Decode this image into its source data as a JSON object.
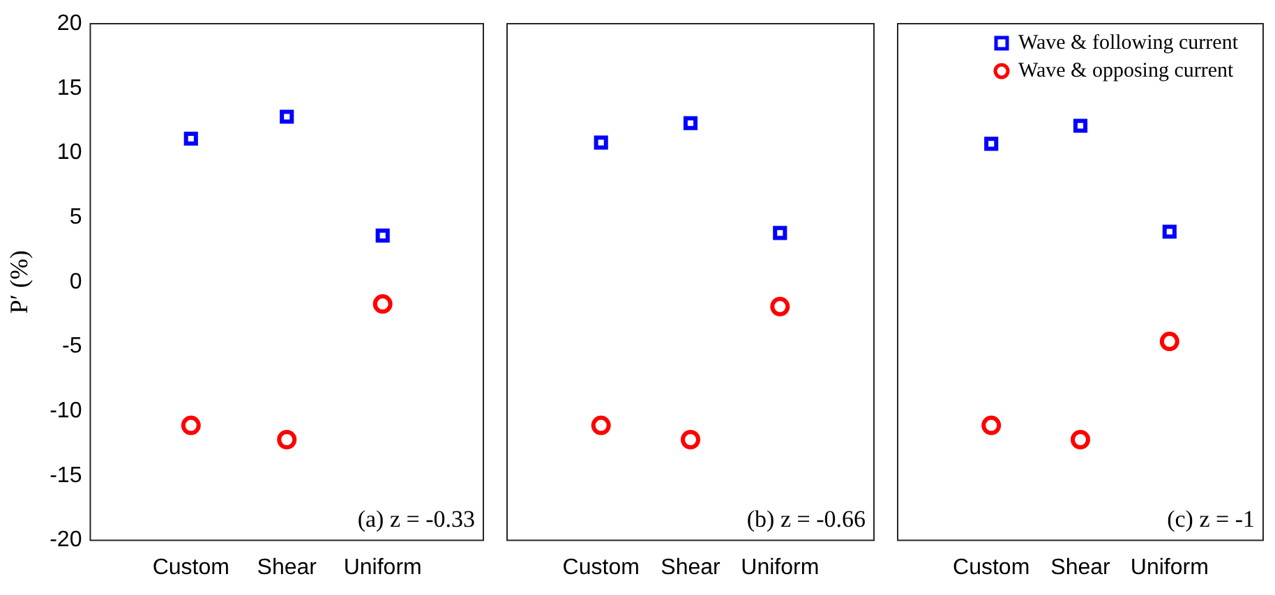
{
  "chart_data": [
    {
      "type": "scatter",
      "categories": [
        "Custom",
        "Shear",
        "Uniform"
      ],
      "ylabel": "P′ (%)",
      "ylim": [
        -20,
        20
      ],
      "yticks": [
        -20,
        -15,
        -10,
        -5,
        0,
        5,
        10,
        15,
        20
      ],
      "grid": false,
      "legend": false,
      "annotations": [
        "(a) z = -0.33"
      ],
      "series": [
        {
          "color": "#0000ff",
          "marker": "square",
          "values": [
            11.1,
            12.8,
            3.6
          ]
        },
        {
          "color": "#ff0000",
          "marker": "circle",
          "values": [
            -11.1,
            -12.2,
            -1.7
          ]
        }
      ]
    },
    {
      "type": "scatter",
      "categories": [
        "Custom",
        "Shear",
        "Uniform"
      ],
      "ylim": [
        -20,
        20
      ],
      "yticks": [
        -20,
        -15,
        -10,
        -5,
        0,
        5,
        10,
        15,
        20
      ],
      "tick_labels": "x",
      "grid": false,
      "legend": false,
      "annotations": [
        "(b) z = -0.66"
      ],
      "series": [
        {
          "color": "#0000ff",
          "marker": "square",
          "values": [
            10.8,
            12.3,
            3.8
          ]
        },
        {
          "color": "#ff0000",
          "marker": "circle",
          "values": [
            -11.1,
            -12.2,
            -1.9
          ]
        }
      ]
    },
    {
      "type": "scatter",
      "categories": [
        "Custom",
        "Shear",
        "Uniform"
      ],
      "ylim": [
        -20,
        20
      ],
      "yticks": [
        -20,
        -15,
        -10,
        -5,
        0,
        5,
        10,
        15,
        20
      ],
      "tick_labels": "x",
      "grid": false,
      "legend": "top right",
      "annotations": [
        "(c) z = -1"
      ],
      "series": [
        {
          "name": "Wave & following current",
          "color": "#0000ff",
          "marker": "square",
          "values": [
            10.7,
            12.1,
            3.9
          ]
        },
        {
          "name": "Wave & opposing current",
          "color": "#ff0000",
          "marker": "circle",
          "values": [
            -11.1,
            -12.2,
            -4.6
          ]
        }
      ]
    }
  ]
}
